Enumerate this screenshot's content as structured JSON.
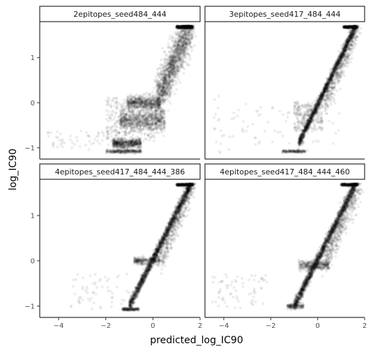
{
  "chart_data": {
    "type": "scatter",
    "xlabel": "predicted_log_IC90",
    "ylabel": "log_IC90",
    "xlim": [
      -4.8,
      2.0
    ],
    "ylim": [
      -1.25,
      1.8
    ],
    "x_ticks": [
      -4,
      -2,
      0,
      2
    ],
    "y_ticks": [
      -1,
      0,
      1
    ],
    "grid": false,
    "point_color": "#000000",
    "point_alpha": 0.07,
    "panels": [
      {
        "title": "2epitopes_seed484_444",
        "clusters": [
          {
            "x": [
              0.2,
              1.6
            ],
            "y": [
              0.1,
              1.7
            ],
            "kind": "diagonal",
            "spread": 0.25,
            "n": 1500
          },
          {
            "x": [
              1.0,
              1.7
            ],
            "y": [
              1.68,
              1.68
            ],
            "kind": "band",
            "spread": 0.015,
            "n": 400
          },
          {
            "x": [
              -1.4,
              0.5
            ],
            "y": [
              -0.4,
              -0.4
            ],
            "kind": "band",
            "spread": 0.12,
            "n": 700
          },
          {
            "x": [
              -1.1,
              0.3
            ],
            "y": [
              0.0,
              0.0
            ],
            "kind": "band",
            "spread": 0.08,
            "n": 500
          },
          {
            "x": [
              -1.7,
              -0.5
            ],
            "y": [
              -0.9,
              -0.9
            ],
            "kind": "band",
            "spread": 0.05,
            "n": 500
          },
          {
            "x": [
              -2.0,
              -0.5
            ],
            "y": [
              -1.08,
              -1.08
            ],
            "kind": "band",
            "spread": 0.02,
            "n": 250
          },
          {
            "x": [
              -2.0,
              0.2
            ],
            "y": [
              -0.8,
              0.1
            ],
            "kind": "blob",
            "spread": 0.3,
            "n": 300
          },
          {
            "x": [
              -4.5,
              -1.5
            ],
            "y": [
              -1.0,
              -0.6
            ],
            "kind": "blob",
            "spread": 0.2,
            "n": 60
          }
        ]
      },
      {
        "title": "3epitopes_seed417_484_444",
        "clusters": [
          {
            "x": [
              -0.8,
              1.6
            ],
            "y": [
              -0.9,
              1.68
            ],
            "kind": "diagonal",
            "spread": 0.05,
            "n": 1800
          },
          {
            "x": [
              0.3,
              1.7
            ],
            "y": [
              -0.0,
              1.7
            ],
            "kind": "diagonal",
            "spread": 0.15,
            "n": 500
          },
          {
            "x": [
              1.1,
              1.7
            ],
            "y": [
              1.68,
              1.68
            ],
            "kind": "band",
            "spread": 0.012,
            "n": 300
          },
          {
            "x": [
              -1.5,
              -0.5
            ],
            "y": [
              -1.08,
              -1.08
            ],
            "kind": "band",
            "spread": 0.015,
            "n": 150
          },
          {
            "x": [
              -1.0,
              0.2
            ],
            "y": [
              -0.6,
              0.0
            ],
            "kind": "blob",
            "spread": 0.12,
            "n": 250
          },
          {
            "x": [
              -4.5,
              1.0
            ],
            "y": [
              -1.0,
              0.0
            ],
            "kind": "blob",
            "spread": 0.3,
            "n": 90
          }
        ]
      },
      {
        "title": "4epitopes_seed417_484_444_386",
        "clusters": [
          {
            "x": [
              -1.0,
              1.6
            ],
            "y": [
              -1.0,
              1.68
            ],
            "kind": "diagonal",
            "spread": 0.06,
            "n": 2000
          },
          {
            "x": [
              0.3,
              1.7
            ],
            "y": [
              0.0,
              1.7
            ],
            "kind": "diagonal",
            "spread": 0.15,
            "n": 400
          },
          {
            "x": [
              1.0,
              1.7
            ],
            "y": [
              1.68,
              1.68
            ],
            "kind": "band",
            "spread": 0.012,
            "n": 300
          },
          {
            "x": [
              -0.8,
              0.3
            ],
            "y": [
              0.0,
              0.0
            ],
            "kind": "band",
            "spread": 0.04,
            "n": 250
          },
          {
            "x": [
              -1.3,
              -0.6
            ],
            "y": [
              -1.07,
              -1.07
            ],
            "kind": "band",
            "spread": 0.015,
            "n": 150
          },
          {
            "x": [
              -3.5,
              -1.0
            ],
            "y": [
              -1.0,
              -0.3
            ],
            "kind": "blob",
            "spread": 0.25,
            "n": 60
          }
        ]
      },
      {
        "title": "4epitopes_seed417_484_444_460",
        "clusters": [
          {
            "x": [
              -1.0,
              1.6
            ],
            "y": [
              -1.0,
              1.68
            ],
            "kind": "diagonal",
            "spread": 0.06,
            "n": 2000
          },
          {
            "x": [
              0.3,
              1.8
            ],
            "y": [
              0.0,
              1.7
            ],
            "kind": "diagonal",
            "spread": 0.18,
            "n": 500
          },
          {
            "x": [
              1.0,
              1.7
            ],
            "y": [
              1.68,
              1.68
            ],
            "kind": "band",
            "spread": 0.012,
            "n": 300
          },
          {
            "x": [
              -0.8,
              0.5
            ],
            "y": [
              -0.1,
              -0.1
            ],
            "kind": "band",
            "spread": 0.05,
            "n": 300
          },
          {
            "x": [
              -1.3,
              -0.6
            ],
            "y": [
              -1.0,
              -0.9
            ],
            "kind": "band",
            "spread": 0.03,
            "n": 150
          },
          {
            "x": [
              -4.5,
              -2.0
            ],
            "y": [
              -1.0,
              -0.3
            ],
            "kind": "blob",
            "spread": 0.25,
            "n": 70
          }
        ]
      }
    ]
  }
}
